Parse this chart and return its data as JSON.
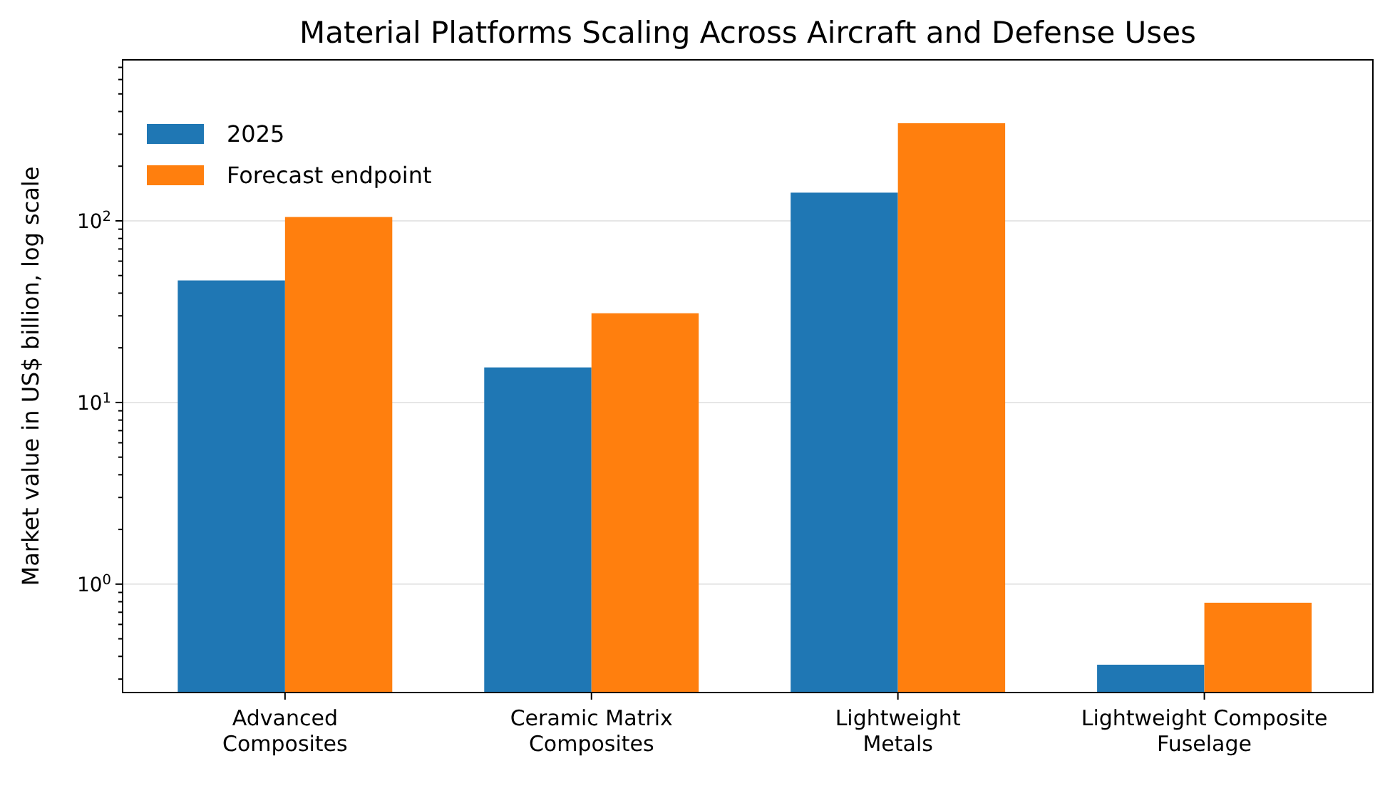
{
  "chart_data": {
    "type": "bar",
    "title": "Material Platforms Scaling Across Aircraft and Defense Uses",
    "ylabel": "Market value in US$ billion, log scale",
    "categories": [
      "Advanced\nComposites",
      "Ceramic Matrix\nComposites",
      "Lightweight\nMetals",
      "Lightweight Composite\nFuselage"
    ],
    "series": [
      {
        "name": "2025",
        "color": "#1f77b4",
        "values": [
          47,
          15.6,
          143,
          0.36
        ]
      },
      {
        "name": "Forecast endpoint",
        "color": "#ff7f0e",
        "values": [
          105,
          31,
          345,
          0.79
        ]
      }
    ],
    "log": true,
    "ylim": [
      0.253,
      770
    ],
    "yticks": [
      {
        "value": 0.3,
        "label": null
      },
      {
        "value": 0.4,
        "label": null
      },
      {
        "value": 0.5,
        "label": null
      },
      {
        "value": 0.6,
        "label": null
      },
      {
        "value": 0.7,
        "label": null
      },
      {
        "value": 0.8,
        "label": null
      },
      {
        "value": 0.9,
        "label": null
      },
      {
        "value": 1,
        "label": "10$^{0}$"
      },
      {
        "value": 2,
        "label": null
      },
      {
        "value": 3,
        "label": null
      },
      {
        "value": 4,
        "label": null
      },
      {
        "value": 5,
        "label": null
      },
      {
        "value": 6,
        "label": null
      },
      {
        "value": 7,
        "label": null
      },
      {
        "value": 8,
        "label": null
      },
      {
        "value": 9,
        "label": null
      },
      {
        "value": 10,
        "label": "10$^{1}$"
      },
      {
        "value": 20,
        "label": null
      },
      {
        "value": 30,
        "label": null
      },
      {
        "value": 40,
        "label": null
      },
      {
        "value": 50,
        "label": null
      },
      {
        "value": 60,
        "label": null
      },
      {
        "value": 70,
        "label": null
      },
      {
        "value": 80,
        "label": null
      },
      {
        "value": 90,
        "label": null
      },
      {
        "value": 100,
        "label": "10$^{2}$"
      },
      {
        "value": 200,
        "label": null
      },
      {
        "value": 300,
        "label": null
      },
      {
        "value": 400,
        "label": null
      },
      {
        "value": 500,
        "label": null
      },
      {
        "value": 600,
        "label": null
      },
      {
        "value": 700,
        "label": null
      }
    ],
    "grid": "y",
    "legend": "top left"
  }
}
